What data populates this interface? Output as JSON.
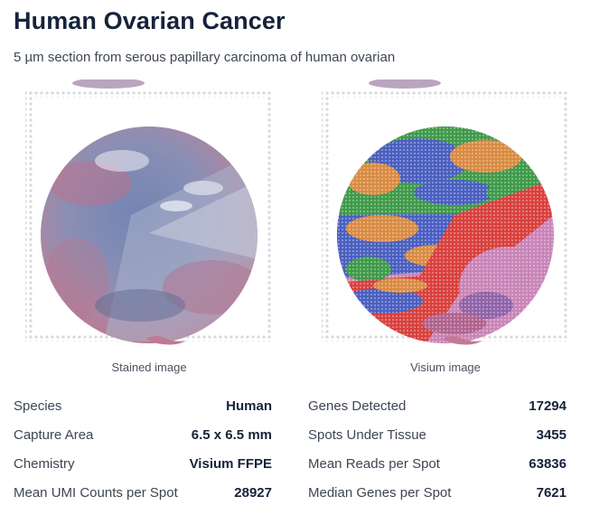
{
  "header": {
    "title": "Human Ovarian Cancer",
    "subtitle": "5 µm section from serous papillary carcinoma of human ovarian"
  },
  "images": {
    "stained": {
      "caption": "Stained image",
      "icon": "stained-tissue-image"
    },
    "visium": {
      "caption": "Visium image",
      "icon": "visium-cluster-image"
    }
  },
  "stats_left": [
    {
      "label": "Species",
      "value": "Human"
    },
    {
      "label": "Capture Area",
      "value": "6.5 x 6.5 mm"
    },
    {
      "label": "Chemistry",
      "value": "Visium FFPE"
    },
    {
      "label": "Mean UMI Counts per Spot",
      "value": "28927"
    }
  ],
  "stats_right": [
    {
      "label": "Genes Detected",
      "value": "17294"
    },
    {
      "label": "Spots Under Tissue",
      "value": "3455"
    },
    {
      "label": "Mean Reads per Spot",
      "value": "63836"
    },
    {
      "label": "Median Genes per Spot",
      "value": "7621"
    }
  ],
  "colors": {
    "title": "#15233a",
    "tissue_blue": "#6f7fae",
    "tissue_pink": "#b86a86",
    "cluster_green": "#3f9a4a",
    "cluster_orange": "#d98b42",
    "cluster_blue": "#4a5fc0",
    "cluster_red": "#d9403d",
    "cluster_pink": "#c984b8",
    "fiducial_dot": "#d6d9de"
  }
}
